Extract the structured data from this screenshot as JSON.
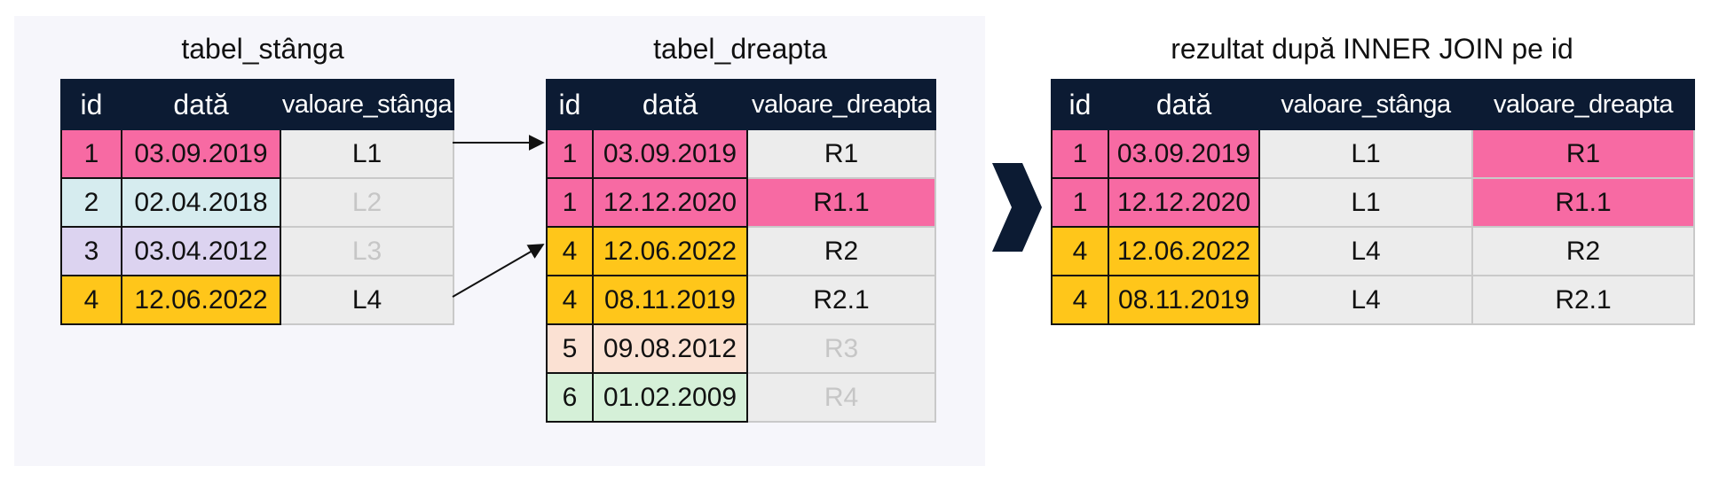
{
  "colors": {
    "header_bg": "#0c1b33",
    "pink": "#f76aa3",
    "light_blue": "#d6ecef",
    "lavender": "#dcd3f0",
    "yellow": "#ffc61a",
    "peach": "#fbe1d3",
    "mint": "#d5f0d8",
    "gray": "#ececec",
    "faded_text": "#c6c6c6"
  },
  "left_table": {
    "title": "tabel_stânga",
    "headers": [
      "id",
      "dată",
      "valoare_stânga"
    ],
    "rows": [
      {
        "id": "1",
        "date": "03.09.2019",
        "value": "L1",
        "key_color": "#f76aa3",
        "value_color": "#ececec",
        "faded": false
      },
      {
        "id": "2",
        "date": "02.04.2018",
        "value": "L2",
        "key_color": "#d6ecef",
        "value_color": "#ececec",
        "faded": true
      },
      {
        "id": "3",
        "date": "03.04.2012",
        "value": "L3",
        "key_color": "#dcd3f0",
        "value_color": "#ececec",
        "faded": true
      },
      {
        "id": "4",
        "date": "12.06.2022",
        "value": "L4",
        "key_color": "#ffc61a",
        "value_color": "#ececec",
        "faded": false
      }
    ]
  },
  "right_table": {
    "title": "tabel_dreapta",
    "headers": [
      "id",
      "dată",
      "valoare_dreapta"
    ],
    "rows": [
      {
        "id": "1",
        "date": "03.09.2019",
        "value": "R1",
        "key_color": "#f76aa3",
        "value_color": "#ececec",
        "faded": false
      },
      {
        "id": "1",
        "date": "12.12.2020",
        "value": "R1.1",
        "key_color": "#f76aa3",
        "value_color": "#f76aa3",
        "faded": false
      },
      {
        "id": "4",
        "date": "12.06.2022",
        "value": "R2",
        "key_color": "#ffc61a",
        "value_color": "#ececec",
        "faded": false
      },
      {
        "id": "4",
        "date": "08.11.2019",
        "value": "R2.1",
        "key_color": "#ffc61a",
        "value_color": "#ececec",
        "faded": false
      },
      {
        "id": "5",
        "date": "09.08.2012",
        "value": "R3",
        "key_color": "#fbe1d3",
        "value_color": "#ececec",
        "faded": true
      },
      {
        "id": "6",
        "date": "01.02.2009",
        "value": "R4",
        "key_color": "#d5f0d8",
        "value_color": "#ececec",
        "faded": true
      }
    ]
  },
  "result_table": {
    "title": "rezultat după INNER JOIN pe id",
    "headers": [
      "id",
      "dată",
      "valoare_stânga",
      "valoare_dreapta"
    ],
    "rows": [
      {
        "id": "1",
        "date": "03.09.2019",
        "left": "L1",
        "right": "R1",
        "key_color": "#f76aa3",
        "right_color": "#f76aa3"
      },
      {
        "id": "1",
        "date": "12.12.2020",
        "left": "L1",
        "right": "R1.1",
        "key_color": "#f76aa3",
        "right_color": "#f76aa3"
      },
      {
        "id": "4",
        "date": "12.06.2022",
        "left": "L4",
        "right": "R2",
        "key_color": "#ffc61a",
        "right_color": "#ececec"
      },
      {
        "id": "4",
        "date": "08.11.2019",
        "left": "L4",
        "right": "R2.1",
        "key_color": "#ffc61a",
        "right_color": "#ececec"
      }
    ]
  }
}
